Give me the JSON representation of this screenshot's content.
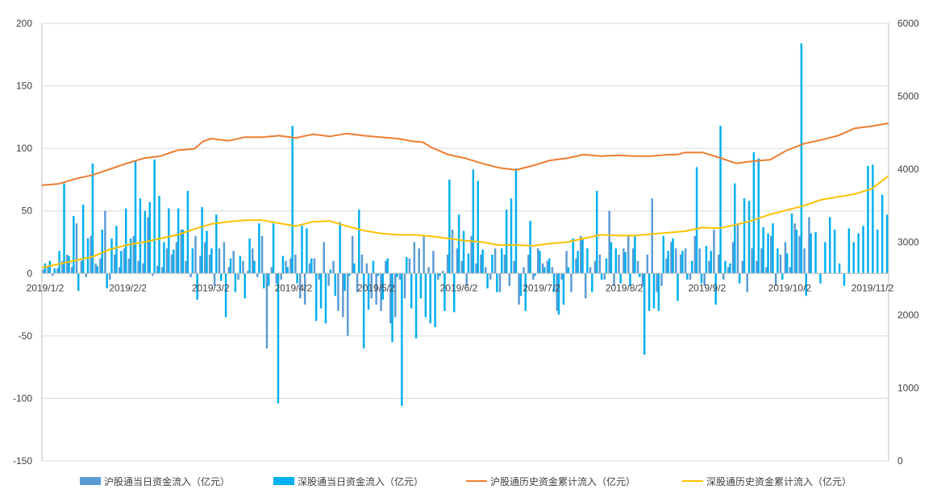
{
  "chart_data": {
    "type": "bar+line",
    "title": "",
    "grid": true,
    "legend_position": "bottom",
    "x_tick_labels": [
      "2019/1/2",
      "2019/2/2",
      "2019/3/2",
      "2019/4/2",
      "2019/5/2",
      "2019/6/2",
      "2019/7/2",
      "2019/8/2",
      "2019/9/2",
      "2019/10/2",
      "2019/11/2"
    ],
    "y_left": {
      "range": [
        -150,
        200
      ],
      "ticks": [
        -150,
        -100,
        -50,
        0,
        50,
        100,
        150,
        200
      ]
    },
    "y_right": {
      "range": [
        0,
        6000
      ],
      "ticks": [
        0,
        1000,
        2000,
        3000,
        4000,
        5000,
        6000
      ]
    },
    "colors": {
      "sh_daily": "#5b9bd5",
      "sz_daily": "#00b0f0",
      "sh_cum": "#ed7d31",
      "sz_cum": "#ffc000",
      "grid": "#d9d9d9",
      "axis": "#bfbfbf"
    },
    "series": [
      {
        "name": "沪股通当日资金流入（亿元）",
        "type": "bar",
        "axis": "left",
        "values": [
          3,
          6,
          -2,
          4,
          10,
          15,
          5,
          40,
          10,
          -3,
          30,
          8,
          12,
          50,
          -5,
          15,
          5,
          20,
          12,
          30,
          10,
          8,
          45,
          -2,
          6,
          5,
          20,
          15,
          25,
          35,
          10,
          -3,
          30,
          14,
          25,
          15,
          -10,
          20,
          25,
          5,
          18,
          -5,
          10,
          2,
          20,
          -3,
          30,
          -60,
          5,
          -8,
          -5,
          10,
          12,
          15,
          -20,
          -25,
          8,
          12,
          -5,
          25,
          -10,
          10,
          -30,
          -35,
          -50,
          30,
          -15,
          15,
          8,
          -20,
          -25,
          -30,
          10,
          -40,
          -35,
          -5,
          -20,
          12,
          25,
          20,
          30,
          5,
          18,
          -5,
          2,
          15,
          35,
          20,
          10,
          -10,
          30,
          8,
          15,
          5,
          -5,
          20,
          -15,
          15,
          -10,
          10,
          -25,
          5,
          15,
          -5,
          20,
          8,
          10,
          5,
          -30,
          -5,
          18,
          -15,
          12,
          30,
          -20,
          5,
          10,
          15,
          -5,
          50,
          -10,
          15,
          20,
          30,
          20,
          10,
          -10,
          15,
          60,
          -15,
          -10,
          12,
          25,
          20,
          15,
          20,
          -5,
          30,
          20,
          -10,
          10,
          35,
          15,
          -5,
          5,
          25,
          40,
          10,
          -15,
          20,
          10,
          20,
          5,
          30,
          -10,
          15,
          25,
          5,
          40,
          30,
          20,
          45
        ]
      },
      {
        "name": "深股通当日资金流入（亿元）",
        "type": "bar",
        "axis": "left",
        "values": [
          8,
          10,
          4,
          18,
          72,
          14,
          46,
          -14,
          55,
          28,
          88,
          6,
          35,
          -12,
          28,
          38,
          18,
          52,
          28,
          90,
          60,
          50,
          57,
          91,
          62,
          25,
          52,
          19,
          52,
          35,
          66,
          20,
          -21,
          53,
          34,
          20,
          47,
          -6,
          -35,
          12,
          -15,
          14,
          -20,
          28,
          10,
          40,
          -12,
          -10,
          40,
          -104,
          14,
          5,
          118,
          -8,
          38,
          36,
          12,
          -38,
          -28,
          -40,
          3,
          -18,
          41,
          -14,
          -2,
          8,
          51,
          -60,
          -29,
          10,
          -2,
          -21,
          12,
          -55,
          -3,
          -106,
          13,
          -28,
          -52,
          -20,
          -35,
          -40,
          -43,
          -2,
          -30,
          75,
          -31,
          47,
          34,
          16,
          83,
          74,
          19,
          -12,
          15,
          -15,
          20,
          51,
          60,
          84,
          -18,
          -30,
          42,
          -2,
          18,
          5,
          12,
          -15,
          -33,
          -25,
          5,
          28,
          18,
          28,
          20,
          -15,
          66,
          -5,
          12,
          25,
          20,
          -8,
          17,
          -10,
          30,
          -3,
          -65,
          -30,
          -28,
          -30,
          30,
          18,
          28,
          -22,
          18,
          -5,
          10,
          85,
          -8,
          22,
          18,
          -25,
          118,
          10,
          8,
          72,
          -8,
          60,
          58,
          97,
          92,
          37,
          32,
          40,
          20,
          -5,
          16,
          48,
          35,
          184,
          -18,
          32,
          33,
          -8,
          25,
          45,
          35,
          8,
          -10,
          36,
          25,
          32,
          38,
          86,
          87,
          35,
          63,
          47
        ]
      },
      {
        "name": "沪股通历史资金累计流入（亿元）",
        "type": "line",
        "axis": "right",
        "points": [
          [
            0,
            3780
          ],
          [
            0.02,
            3800
          ],
          [
            0.04,
            3870
          ],
          [
            0.06,
            3920
          ],
          [
            0.08,
            4000
          ],
          [
            0.1,
            4080
          ],
          [
            0.12,
            4150
          ],
          [
            0.14,
            4180
          ],
          [
            0.16,
            4260
          ],
          [
            0.18,
            4280
          ],
          [
            0.19,
            4380
          ],
          [
            0.2,
            4420
          ],
          [
            0.22,
            4390
          ],
          [
            0.24,
            4440
          ],
          [
            0.26,
            4440
          ],
          [
            0.28,
            4460
          ],
          [
            0.3,
            4430
          ],
          [
            0.32,
            4480
          ],
          [
            0.34,
            4450
          ],
          [
            0.36,
            4490
          ],
          [
            0.38,
            4460
          ],
          [
            0.4,
            4440
          ],
          [
            0.42,
            4420
          ],
          [
            0.44,
            4380
          ],
          [
            0.45,
            4370
          ],
          [
            0.46,
            4300
          ],
          [
            0.48,
            4200
          ],
          [
            0.5,
            4150
          ],
          [
            0.52,
            4080
          ],
          [
            0.54,
            4020
          ],
          [
            0.56,
            3990
          ],
          [
            0.58,
            4050
          ],
          [
            0.6,
            4120
          ],
          [
            0.62,
            4150
          ],
          [
            0.64,
            4200
          ],
          [
            0.66,
            4180
          ],
          [
            0.68,
            4190
          ],
          [
            0.7,
            4180
          ],
          [
            0.72,
            4180
          ],
          [
            0.74,
            4200
          ],
          [
            0.75,
            4200
          ],
          [
            0.76,
            4230
          ],
          [
            0.78,
            4230
          ],
          [
            0.8,
            4160
          ],
          [
            0.82,
            4080
          ],
          [
            0.84,
            4110
          ],
          [
            0.86,
            4130
          ],
          [
            0.88,
            4260
          ],
          [
            0.9,
            4350
          ],
          [
            0.92,
            4400
          ],
          [
            0.94,
            4460
          ],
          [
            0.96,
            4560
          ],
          [
            0.98,
            4590
          ],
          [
            1.0,
            4630
          ]
        ]
      },
      {
        "name": "深股通历史资金累计流入（亿元）",
        "type": "line",
        "axis": "right",
        "points": [
          [
            0,
            2650
          ],
          [
            0.02,
            2700
          ],
          [
            0.04,
            2750
          ],
          [
            0.06,
            2800
          ],
          [
            0.08,
            2900
          ],
          [
            0.1,
            2960
          ],
          [
            0.12,
            3000
          ],
          [
            0.14,
            3050
          ],
          [
            0.16,
            3100
          ],
          [
            0.18,
            3180
          ],
          [
            0.2,
            3250
          ],
          [
            0.22,
            3280
          ],
          [
            0.24,
            3300
          ],
          [
            0.26,
            3300
          ],
          [
            0.28,
            3260
          ],
          [
            0.3,
            3220
          ],
          [
            0.32,
            3280
          ],
          [
            0.34,
            3290
          ],
          [
            0.36,
            3220
          ],
          [
            0.38,
            3160
          ],
          [
            0.4,
            3120
          ],
          [
            0.42,
            3100
          ],
          [
            0.44,
            3100
          ],
          [
            0.46,
            3080
          ],
          [
            0.48,
            3050
          ],
          [
            0.5,
            3020
          ],
          [
            0.52,
            3000
          ],
          [
            0.54,
            2960
          ],
          [
            0.56,
            2960
          ],
          [
            0.58,
            2950
          ],
          [
            0.6,
            2980
          ],
          [
            0.62,
            3000
          ],
          [
            0.64,
            3050
          ],
          [
            0.66,
            3100
          ],
          [
            0.68,
            3090
          ],
          [
            0.7,
            3090
          ],
          [
            0.72,
            3110
          ],
          [
            0.74,
            3130
          ],
          [
            0.76,
            3150
          ],
          [
            0.78,
            3200
          ],
          [
            0.8,
            3190
          ],
          [
            0.82,
            3240
          ],
          [
            0.84,
            3300
          ],
          [
            0.86,
            3380
          ],
          [
            0.88,
            3440
          ],
          [
            0.9,
            3500
          ],
          [
            0.92,
            3580
          ],
          [
            0.94,
            3620
          ],
          [
            0.96,
            3660
          ],
          [
            0.98,
            3730
          ],
          [
            1.0,
            3910
          ]
        ]
      }
    ]
  }
}
